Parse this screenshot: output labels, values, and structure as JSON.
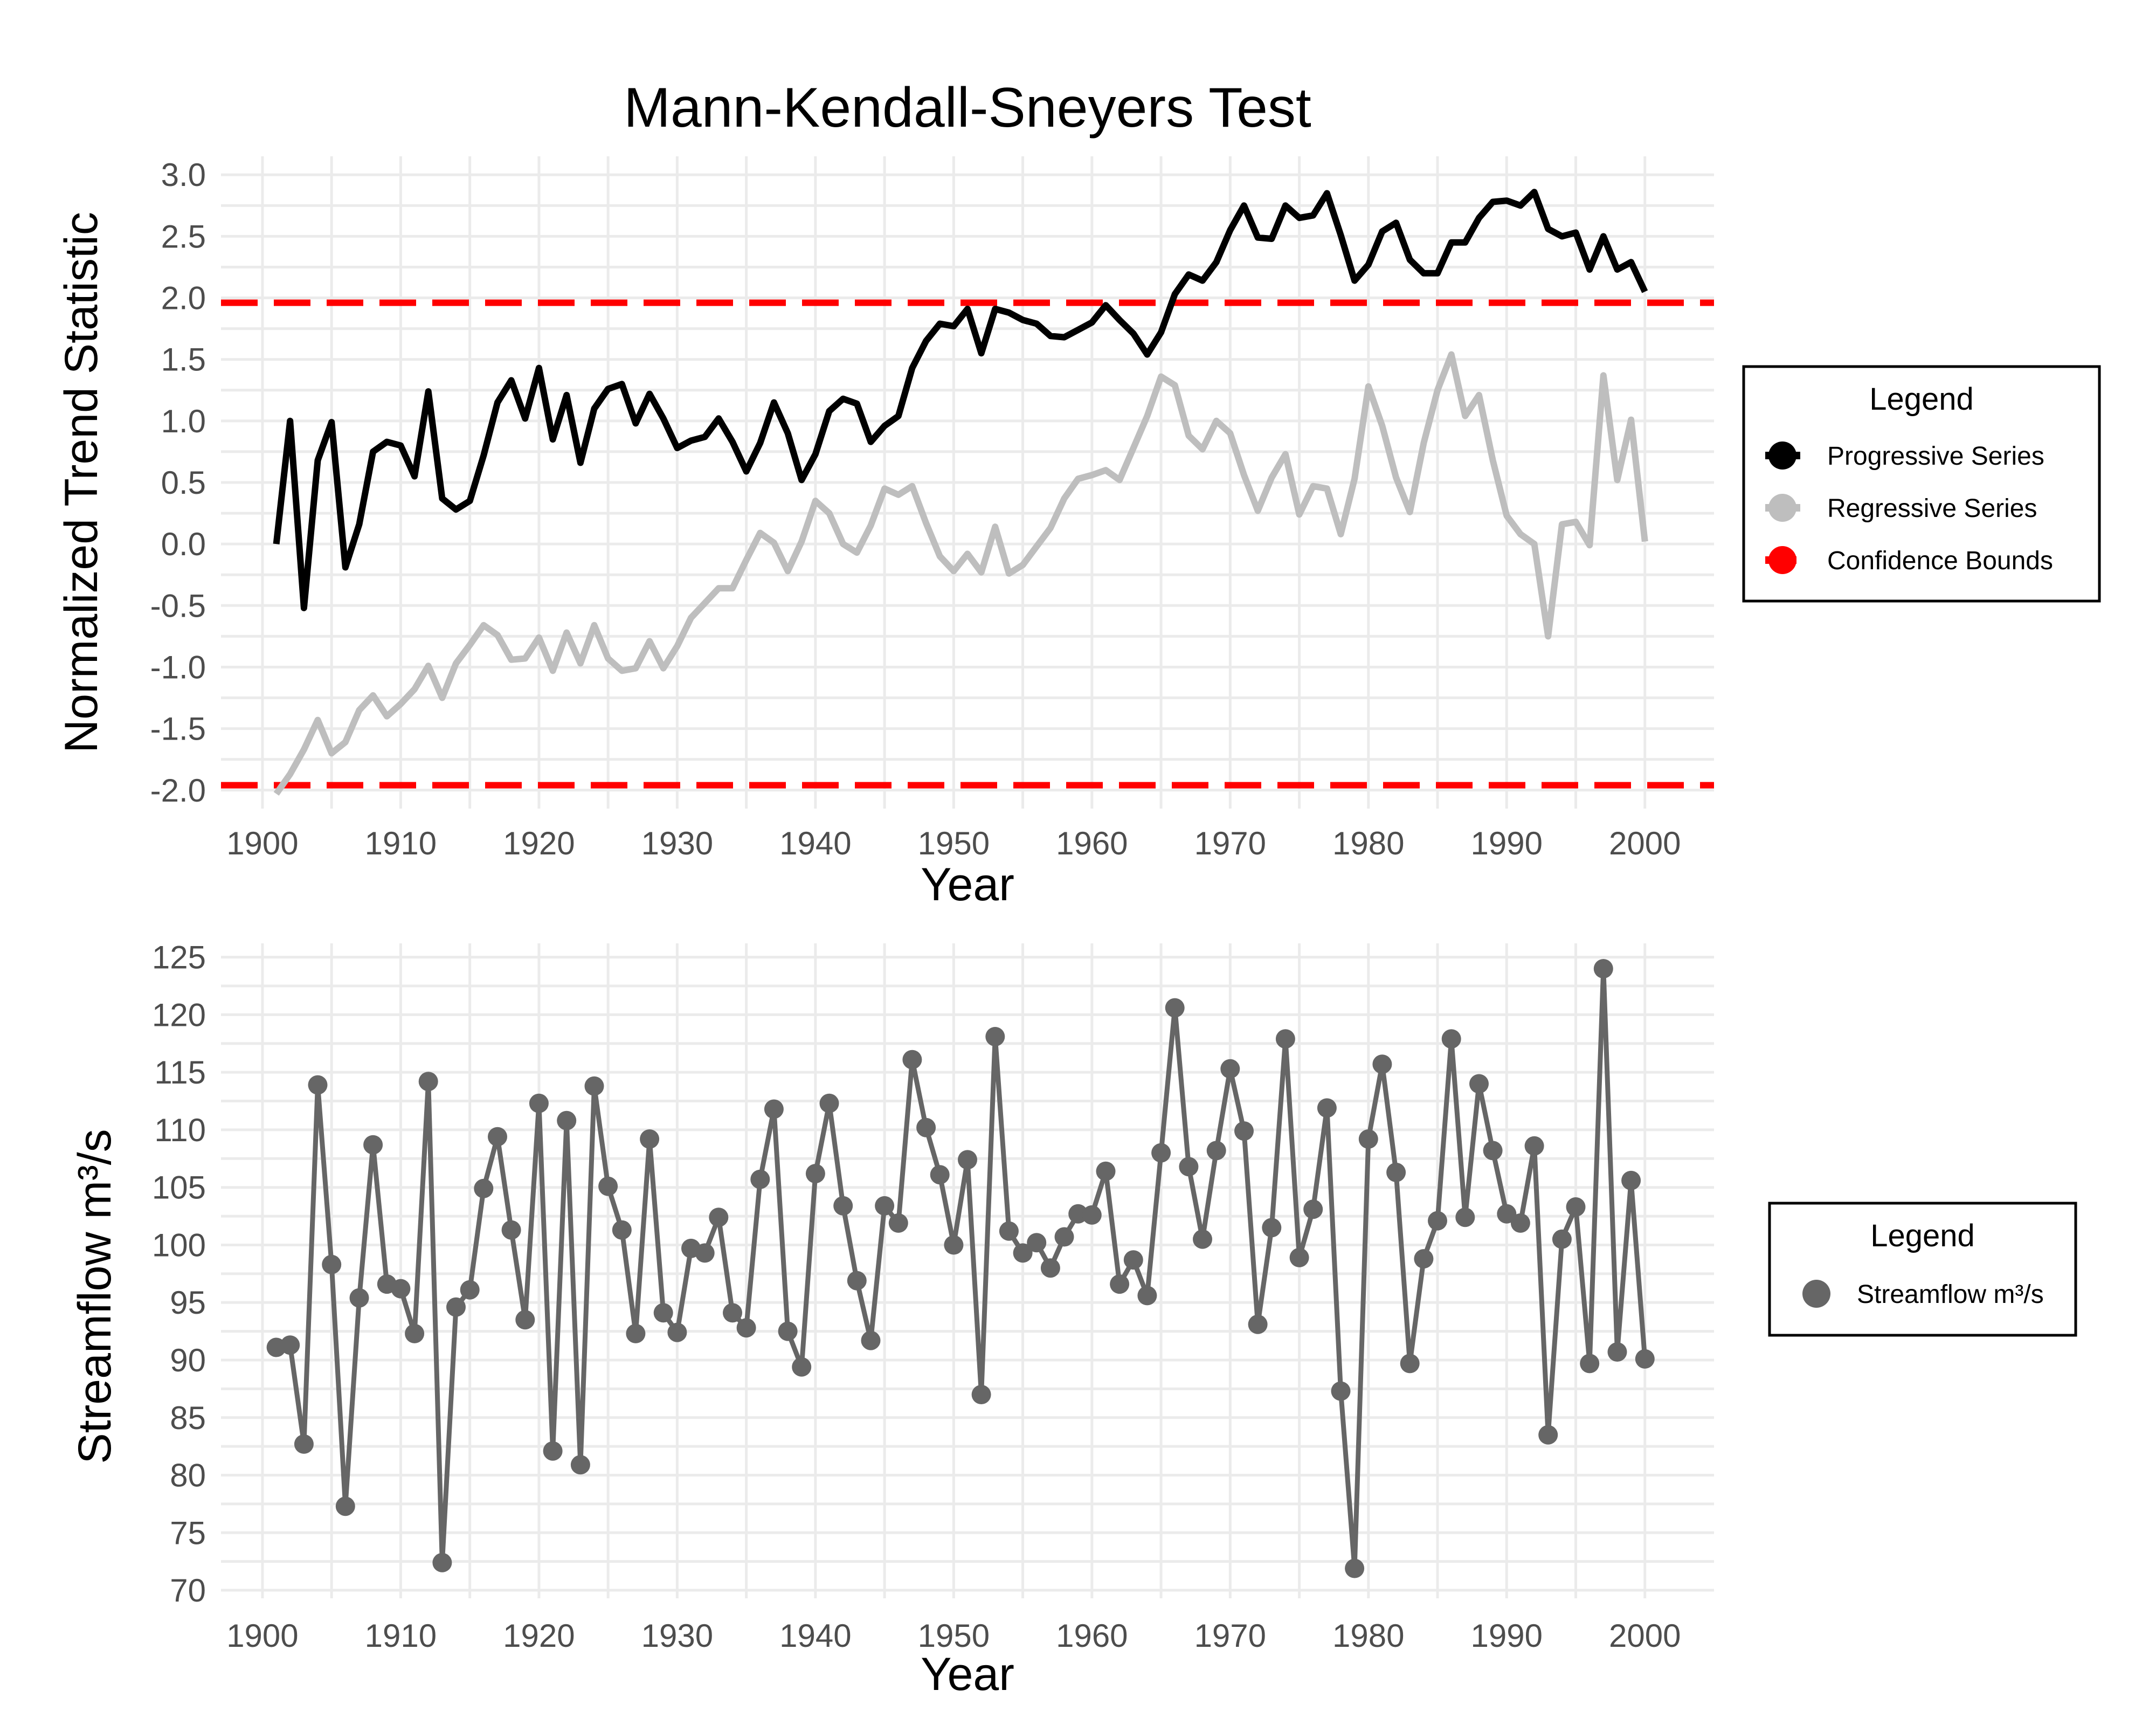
{
  "chart_data": [
    {
      "type": "line",
      "title": "Mann-Kendall-Sneyers Test",
      "xlabel": "Year",
      "ylabel": "Normalized Trend Statistic",
      "xlim": [
        1897,
        2005
      ],
      "ylim": [
        -2.15,
        3.15
      ],
      "xticks": [
        "1900",
        "1910",
        "1920",
        "1930",
        "1940",
        "1950",
        "1960",
        "1970",
        "1980",
        "1990",
        "2000"
      ],
      "yticks": [
        "-2.0",
        "-1.5",
        "-1.0",
        "-0.5",
        "0.0",
        "0.5",
        "1.0",
        "1.5",
        "2.0",
        "2.5",
        "3.0"
      ],
      "grid": true,
      "legend": {
        "title": "Legend",
        "placement": "right",
        "items": [
          {
            "label": "Progressive Series",
            "color": "#000000"
          },
          {
            "label": "Regressive Series",
            "color": "#bebebe"
          },
          {
            "label": "Confidence Bounds",
            "color": "#ff0000"
          }
        ]
      },
      "x": [
        1901,
        1902,
        1903,
        1904,
        1905,
        1906,
        1907,
        1908,
        1909,
        1910,
        1911,
        1912,
        1913,
        1914,
        1915,
        1916,
        1917,
        1918,
        1919,
        1920,
        1921,
        1922,
        1923,
        1924,
        1925,
        1926,
        1927,
        1928,
        1929,
        1930,
        1931,
        1932,
        1933,
        1934,
        1935,
        1936,
        1937,
        1938,
        1939,
        1940,
        1941,
        1942,
        1943,
        1944,
        1945,
        1946,
        1947,
        1948,
        1949,
        1950,
        1951,
        1952,
        1953,
        1954,
        1955,
        1956,
        1957,
        1958,
        1959,
        1960,
        1961,
        1962,
        1963,
        1964,
        1965,
        1966,
        1967,
        1968,
        1969,
        1970,
        1971,
        1972,
        1973,
        1974,
        1975,
        1976,
        1977,
        1978,
        1979,
        1980,
        1981,
        1982,
        1983,
        1984,
        1985,
        1986,
        1987,
        1988,
        1989,
        1990,
        1991,
        1992,
        1993,
        1994,
        1995,
        1996,
        1997,
        1998,
        1999,
        2000
      ],
      "series": [
        {
          "name": "Progressive Series",
          "color": "#000000",
          "values": [
            0.0,
            1.0,
            -0.52,
            0.68,
            0.99,
            -0.19,
            0.16,
            0.75,
            0.83,
            0.8,
            0.55,
            1.24,
            0.37,
            0.28,
            0.35,
            0.72,
            1.15,
            1.33,
            1.02,
            1.43,
            0.85,
            1.21,
            0.66,
            1.1,
            1.26,
            1.3,
            0.98,
            1.22,
            1.02,
            0.78,
            0.84,
            0.87,
            1.02,
            0.83,
            0.59,
            0.82,
            1.15,
            0.9,
            0.52,
            0.73,
            1.08,
            1.18,
            1.14,
            0.83,
            0.96,
            1.04,
            1.43,
            1.65,
            1.79,
            1.77,
            1.91,
            1.55,
            1.91,
            1.88,
            1.82,
            1.79,
            1.69,
            1.68,
            1.74,
            1.8,
            1.94,
            1.82,
            1.71,
            1.54,
            1.72,
            2.03,
            2.19,
            2.14,
            2.29,
            2.55,
            2.75,
            2.49,
            2.48,
            2.75,
            2.65,
            2.67,
            2.85,
            2.51,
            2.14,
            2.27,
            2.54,
            2.61,
            2.31,
            2.2,
            2.2,
            2.45,
            2.45,
            2.65,
            2.78,
            2.79,
            2.75,
            2.86,
            2.56,
            2.5,
            2.53,
            2.23,
            2.5,
            2.23,
            2.29,
            2.05
          ]
        },
        {
          "name": "Regressive Series",
          "color": "#bebebe",
          "values": [
            -2.03,
            -1.87,
            -1.67,
            -1.43,
            -1.7,
            -1.61,
            -1.35,
            -1.23,
            -1.4,
            -1.3,
            -1.18,
            -0.99,
            -1.25,
            -0.97,
            -0.82,
            -0.66,
            -0.74,
            -0.94,
            -0.93,
            -0.76,
            -1.03,
            -0.72,
            -0.97,
            -0.66,
            -0.93,
            -1.03,
            -1.01,
            -0.79,
            -1.01,
            -0.83,
            -0.6,
            -0.48,
            -0.36,
            -0.36,
            -0.13,
            0.09,
            0.01,
            -0.22,
            0.02,
            0.35,
            0.25,
            0.0,
            -0.07,
            0.15,
            0.45,
            0.4,
            0.47,
            0.17,
            -0.1,
            -0.22,
            -0.08,
            -0.23,
            0.14,
            -0.24,
            -0.17,
            -0.02,
            0.13,
            0.37,
            0.53,
            0.56,
            0.6,
            0.52,
            0.78,
            1.04,
            1.36,
            1.29,
            0.88,
            0.77,
            1.0,
            0.9,
            0.56,
            0.27,
            0.54,
            0.73,
            0.24,
            0.47,
            0.45,
            0.08,
            0.53,
            1.28,
            0.96,
            0.54,
            0.26,
            0.82,
            1.25,
            1.54,
            1.04,
            1.21,
            0.68,
            0.23,
            0.08,
            0.0,
            -0.75,
            0.16,
            0.18,
            -0.01,
            1.37,
            0.52,
            1.01,
            0.02
          ]
        }
      ],
      "bounds": {
        "name": "Confidence Bounds",
        "color": "#ff0000",
        "values": [
          -1.96,
          1.96
        ]
      }
    },
    {
      "type": "line",
      "title": "",
      "xlabel": "Year",
      "ylabel": "Streamflow m³/s",
      "xlim": [
        1897,
        2005
      ],
      "ylim": [
        69.3,
        126.2
      ],
      "xticks": [
        "1900",
        "1910",
        "1920",
        "1930",
        "1940",
        "1950",
        "1960",
        "1970",
        "1980",
        "1990",
        "2000"
      ],
      "yticks": [
        "70",
        "75",
        "80",
        "85",
        "90",
        "95",
        "100",
        "105",
        "110",
        "115",
        "120",
        "125"
      ],
      "grid": true,
      "legend": {
        "title": "Legend",
        "placement": "right",
        "items": [
          {
            "label": "Streamflow m³/s",
            "color": "#666666"
          }
        ]
      },
      "x": [
        1901,
        1902,
        1903,
        1904,
        1905,
        1906,
        1907,
        1908,
        1909,
        1910,
        1911,
        1912,
        1913,
        1914,
        1915,
        1916,
        1917,
        1918,
        1919,
        1920,
        1921,
        1922,
        1923,
        1924,
        1925,
        1926,
        1927,
        1928,
        1929,
        1930,
        1931,
        1932,
        1933,
        1934,
        1935,
        1936,
        1937,
        1938,
        1939,
        1940,
        1941,
        1942,
        1943,
        1944,
        1945,
        1946,
        1947,
        1948,
        1949,
        1950,
        1951,
        1952,
        1953,
        1954,
        1955,
        1956,
        1957,
        1958,
        1959,
        1960,
        1961,
        1962,
        1963,
        1964,
        1965,
        1966,
        1967,
        1968,
        1969,
        1970,
        1971,
        1972,
        1973,
        1974,
        1975,
        1976,
        1977,
        1978,
        1979,
        1980,
        1981,
        1982,
        1983,
        1984,
        1985,
        1986,
        1987,
        1988,
        1989,
        1990,
        1991,
        1992,
        1993,
        1994,
        1995,
        1996,
        1997,
        1998,
        1999,
        2000
      ],
      "series": [
        {
          "name": "Streamflow m³/s",
          "color": "#666666",
          "values": [
            91.1,
            91.3,
            82.7,
            113.9,
            98.3,
            77.3,
            95.4,
            108.7,
            96.6,
            96.2,
            92.3,
            114.2,
            72.4,
            94.6,
            96.1,
            104.9,
            109.4,
            101.3,
            93.5,
            112.3,
            82.1,
            110.8,
            80.9,
            113.8,
            105.1,
            101.3,
            92.3,
            109.2,
            94.1,
            92.4,
            99.7,
            99.3,
            102.4,
            94.1,
            92.8,
            105.7,
            111.8,
            92.5,
            89.4,
            106.2,
            112.3,
            103.4,
            96.9,
            91.7,
            103.4,
            101.9,
            116.1,
            110.2,
            106.1,
            100.0,
            107.4,
            87.0,
            118.1,
            101.2,
            99.3,
            100.2,
            98.0,
            100.7,
            102.7,
            102.6,
            106.4,
            96.6,
            98.7,
            95.6,
            108.0,
            120.6,
            106.8,
            100.5,
            108.2,
            115.3,
            109.9,
            93.1,
            101.5,
            117.9,
            98.9,
            103.1,
            111.9,
            87.3,
            71.9,
            109.2,
            115.7,
            106.3,
            89.7,
            98.8,
            102.1,
            117.9,
            102.4,
            114.0,
            108.2,
            102.7,
            101.9,
            108.6,
            83.5,
            100.5,
            103.3,
            89.7,
            124.0,
            90.7,
            105.6,
            90.1
          ]
        }
      ]
    }
  ]
}
